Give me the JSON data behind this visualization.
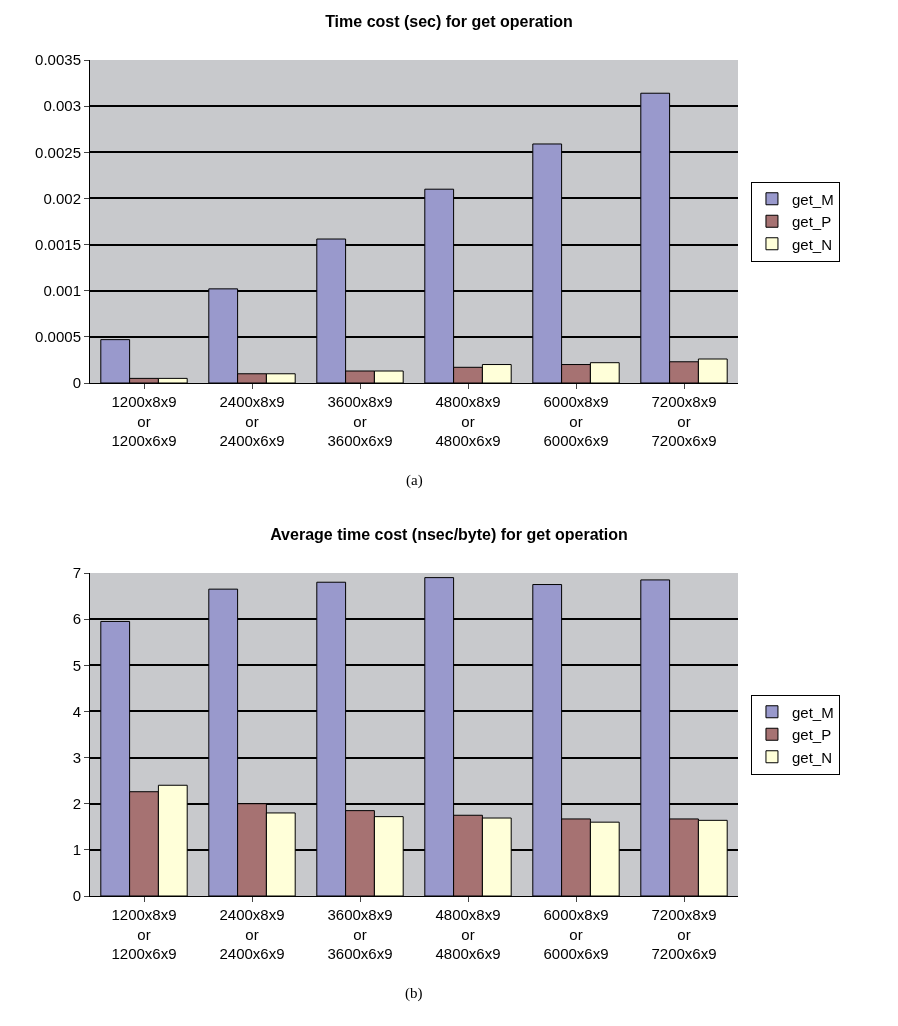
{
  "chart_data": [
    {
      "type": "bar",
      "title": "Time cost (sec) for get operation",
      "categories": [
        "1200x8x9\nor\n1200x6x9",
        "2400x8x9\nor\n2400x6x9",
        "3600x8x9\nor\n3600x6x9",
        "4800x8x9\nor\n4800x6x9",
        "6000x8x9\nor\n6000x6x9",
        "7200x8x9\nor\n7200x6x9"
      ],
      "series": [
        {
          "name": "get_M",
          "color": "#9999cc",
          "values": [
            0.00047,
            0.00102,
            0.00156,
            0.0021,
            0.00259,
            0.00314
          ]
        },
        {
          "name": "get_P",
          "color": "#a67272",
          "values": [
            5e-05,
            0.0001,
            0.00013,
            0.00017,
            0.0002,
            0.00023
          ]
        },
        {
          "name": "get_N",
          "color": "#ffffd9",
          "values": [
            5e-05,
            0.0001,
            0.00013,
            0.0002,
            0.00022,
            0.00026
          ]
        }
      ],
      "ylim": [
        0,
        0.0035
      ],
      "yticks": [
        0,
        0.0005,
        0.001,
        0.0015,
        0.002,
        0.0025,
        0.003,
        0.0035
      ],
      "grid": "y",
      "legend": "right",
      "annotations": [
        "(a)"
      ]
    },
    {
      "type": "bar",
      "title": "Average time cost (nsec/byte) for get operation",
      "categories": [
        "1200x8x9\nor\n1200x6x9",
        "2400x8x9\nor\n2400x6x9",
        "3600x8x9\nor\n3600x6x9",
        "4800x8x9\nor\n4800x6x9",
        "6000x8x9\nor\n6000x6x9",
        "7200x8x9\nor\n7200x6x9"
      ],
      "series": [
        {
          "name": "get_M",
          "color": "#9999cc",
          "values": [
            5.95,
            6.65,
            6.8,
            6.9,
            6.75,
            6.85
          ]
        },
        {
          "name": "get_P",
          "color": "#a67272",
          "values": [
            2.26,
            2.0,
            1.85,
            1.75,
            1.67,
            1.67
          ]
        },
        {
          "name": "get_N",
          "color": "#ffffd9",
          "values": [
            2.4,
            1.8,
            1.72,
            1.69,
            1.6,
            1.64
          ]
        }
      ],
      "ylim": [
        0,
        7
      ],
      "yticks": [
        0,
        1,
        2,
        3,
        4,
        5,
        6,
        7
      ],
      "grid": "y",
      "legend": "right",
      "annotations": [
        "(b)"
      ]
    }
  ]
}
